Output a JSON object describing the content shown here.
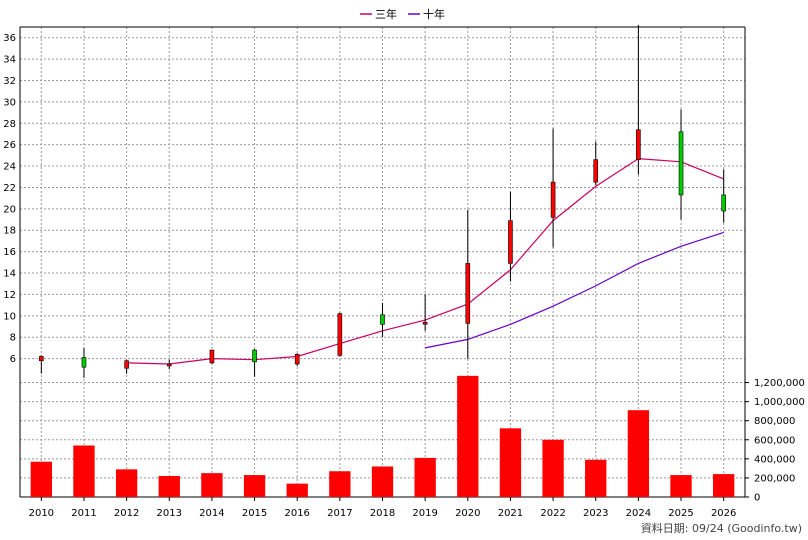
{
  "chart_data": {
    "type": "candlestick",
    "categories": [
      "2010",
      "2011",
      "2012",
      "2013",
      "2014",
      "2015",
      "2016",
      "2017",
      "2018",
      "2019",
      "2020",
      "2021",
      "2022",
      "2023",
      "2024",
      "2025",
      "2026"
    ],
    "price_axis": {
      "ylim": [
        4,
        37
      ],
      "ticks": [
        6,
        8,
        10,
        12,
        14,
        16,
        18,
        20,
        22,
        24,
        26,
        28,
        30,
        32,
        34,
        36
      ]
    },
    "volume_axis": {
      "ylim": [
        0,
        1300000
      ],
      "ticks": [
        0,
        200000,
        400000,
        600000,
        800000,
        1000000,
        1200000
      ],
      "tick_labels": [
        "0",
        "200,000",
        "400,000",
        "600,000",
        "800,000",
        "1,000,000",
        "1,200,000"
      ]
    },
    "candles": [
      {
        "open": 5.8,
        "close": 6.2,
        "high": 6.3,
        "low": 4.6,
        "color": "#ff0000"
      },
      {
        "open": 6.1,
        "close": 5.2,
        "high": 7.0,
        "low": 4.2,
        "color": "#00cc00"
      },
      {
        "open": 5.1,
        "close": 5.8,
        "high": 5.9,
        "low": 4.6,
        "color": "#ff0000"
      },
      {
        "open": 5.4,
        "close": 5.5,
        "high": 5.9,
        "low": 5.0,
        "color": "#ff0000"
      },
      {
        "open": 5.6,
        "close": 6.8,
        "high": 6.8,
        "low": 5.5,
        "color": "#ff0000"
      },
      {
        "open": 6.8,
        "close": 5.7,
        "high": 6.9,
        "low": 4.3,
        "color": "#00cc00"
      },
      {
        "open": 5.5,
        "close": 6.4,
        "high": 6.5,
        "low": 5.3,
        "color": "#ff0000"
      },
      {
        "open": 6.3,
        "close": 10.2,
        "high": 10.3,
        "low": 6.2,
        "color": "#ff0000"
      },
      {
        "open": 10.1,
        "close": 9.2,
        "high": 11.2,
        "low": 8.0,
        "color": "#00cc00"
      },
      {
        "open": 9.3,
        "close": 9.4,
        "high": 12.0,
        "low": 8.6,
        "color": "#ff0000"
      },
      {
        "open": 9.3,
        "close": 14.9,
        "high": 19.9,
        "low": 6.0,
        "color": "#ff0000"
      },
      {
        "open": 14.9,
        "close": 18.9,
        "high": 21.6,
        "low": 13.2,
        "color": "#ff0000"
      },
      {
        "open": 19.2,
        "close": 22.5,
        "high": 27.5,
        "low": 16.4,
        "color": "#ff0000"
      },
      {
        "open": 22.5,
        "close": 24.6,
        "high": 26.3,
        "low": 22.2,
        "color": "#ff0000"
      },
      {
        "open": 24.6,
        "close": 27.4,
        "high": 37.2,
        "low": 23.2,
        "color": "#ff0000"
      },
      {
        "open": 27.2,
        "close": 21.3,
        "high": 29.3,
        "low": 19.0,
        "color": "#00cc00"
      },
      {
        "open": 21.3,
        "close": 19.8,
        "high": 23.7,
        "low": 18.7,
        "color": "#00cc00"
      }
    ],
    "series": [
      {
        "name": "三年",
        "color": "#cc0066",
        "values": [
          null,
          null,
          5.6,
          5.5,
          6.0,
          5.9,
          6.2,
          7.4,
          8.6,
          9.6,
          11.1,
          14.3,
          18.9,
          22.1,
          24.7,
          24.4,
          22.8
        ]
      },
      {
        "name": "十年",
        "color": "#6600cc",
        "values": [
          null,
          null,
          null,
          null,
          null,
          null,
          null,
          null,
          null,
          7.0,
          7.8,
          9.2,
          10.9,
          12.8,
          14.9,
          16.5,
          17.8
        ]
      }
    ],
    "volume": [
      370000,
      540000,
      290000,
      220000,
      250000,
      230000,
      140000,
      270000,
      320000,
      410000,
      1270000,
      720000,
      600000,
      390000,
      910000,
      230000,
      240000
    ],
    "volume_color": "#ff0000"
  },
  "footer": "資料日期: 09/24  (Goodinfo.tw)"
}
